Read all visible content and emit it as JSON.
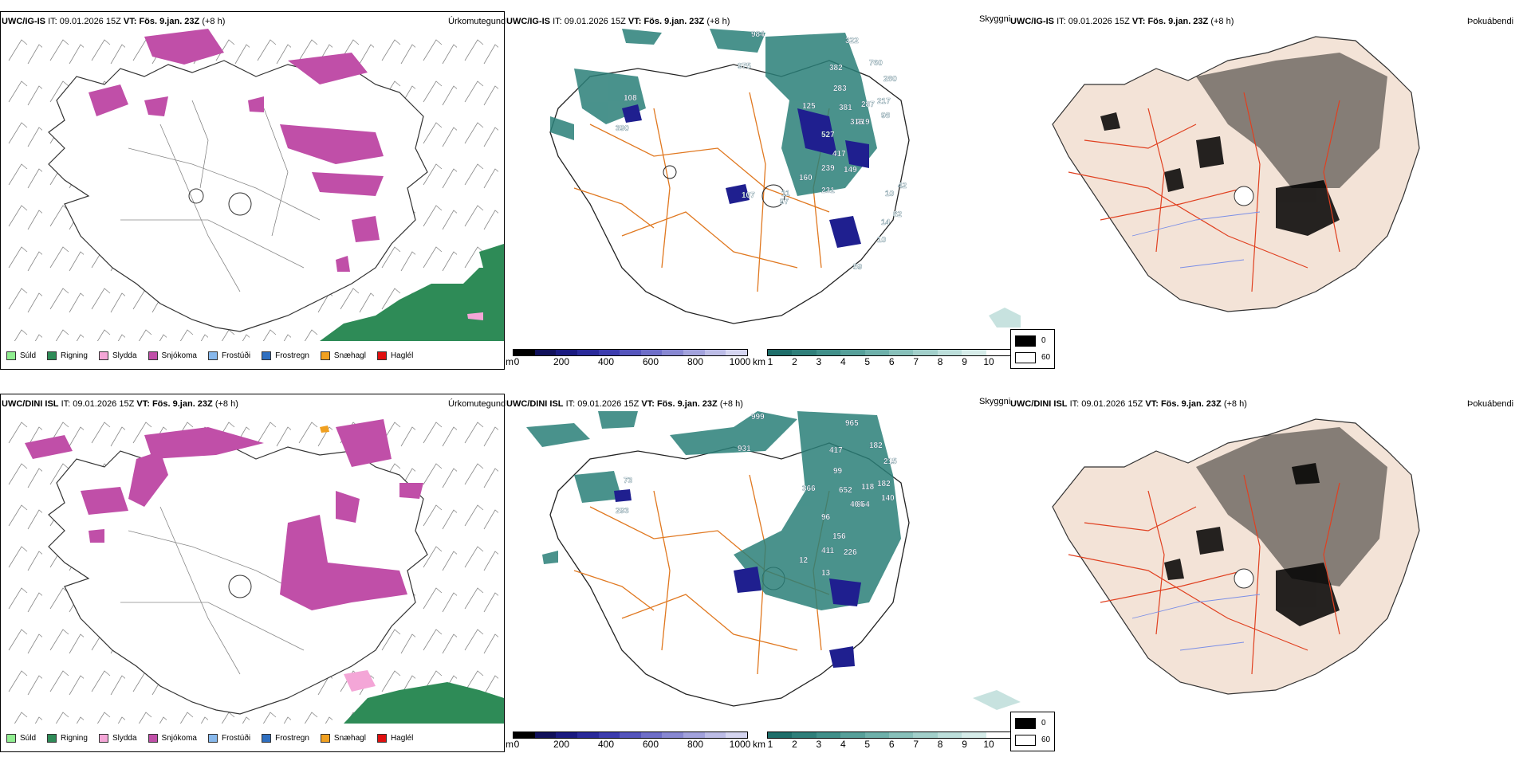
{
  "rows": [
    {
      "col1": {
        "model": "UWC/IG-IS",
        "it_label": "IT:",
        "it": "09.01.2026 15Z",
        "vt_label": "VT:",
        "vt": "Fös. 9.jan. 23Z",
        "lead": "(+8 h)",
        "product": "Úrkomutegund"
      },
      "col2": {
        "model": "UWC/IG-IS",
        "it_label": "IT:",
        "it": "09.01.2026 15Z",
        "vt_label": "VT:",
        "vt": "Fös. 9.jan. 23Z",
        "lead": "(+8 h)",
        "product": "Skyggni"
      },
      "col3": {
        "model": "UWC/IG-IS",
        "it_label": "IT:",
        "it": "09.01.2026 15Z",
        "vt_label": "VT:",
        "vt": "Fös. 9.jan. 23Z",
        "lead": "(+8 h)",
        "product": "Þokuábendi"
      },
      "ceiling_labels": [
        "975",
        "984",
        "322",
        "382",
        "760",
        "280",
        "108",
        "390",
        "283",
        "125",
        "381",
        "217",
        "219",
        "287",
        "316",
        "98",
        "527",
        "417",
        "149",
        "239",
        "160",
        "231",
        "11",
        "97",
        "107",
        "42",
        "10",
        "82",
        "14",
        "10",
        "59"
      ]
    },
    {
      "col1": {
        "model": "UWC/DINI ISL",
        "it_label": "IT:",
        "it": "09.01.2026 15Z",
        "vt_label": "VT:",
        "vt": "Fös. 9.jan. 23Z",
        "lead": "(+8 h)",
        "product": "Úrkomutegund"
      },
      "col2": {
        "model": "UWC/DINI ISL",
        "it_label": "IT:",
        "it": "09.01.2026 15Z",
        "vt_label": "VT:",
        "vt": "Fös. 9.jan. 23Z",
        "lead": "(+8 h)",
        "product": "Skyggni"
      },
      "col3": {
        "model": "UWC/DINI ISL",
        "it_label": "IT:",
        "it": "09.01.2026 15Z",
        "vt_label": "VT:",
        "vt": "Fös. 9.jan. 23Z",
        "lead": "(+8 h)",
        "product": "Þokuábendi"
      },
      "ceiling_labels": [
        "931",
        "999",
        "965",
        "417",
        "182",
        "215",
        "73",
        "293",
        "99",
        "366",
        "652",
        "182",
        "654",
        "118",
        "404",
        "140",
        "96",
        "156",
        "226",
        "411",
        "12",
        "13"
      ]
    }
  ],
  "precip_legend": [
    {
      "label": "Súld",
      "color": "#90ee90"
    },
    {
      "label": "Rigning",
      "color": "#2e8b57"
    },
    {
      "label": "Slydda",
      "color": "#f4a6d7"
    },
    {
      "label": "Snjókoma",
      "color": "#c04fa8"
    },
    {
      "label": "Frostúði",
      "color": "#87b8ec"
    },
    {
      "label": "Frostregn",
      "color": "#2f6fc0"
    },
    {
      "label": "Snæhagl",
      "color": "#f0a020"
    },
    {
      "label": "Haglél",
      "color": "#e01010"
    }
  ],
  "ceiling_scale": {
    "unit": "m",
    "ticks": [
      "0",
      "200",
      "400",
      "600",
      "800",
      "1000"
    ],
    "colors": [
      "#000000",
      "#10105a",
      "#1a1a80",
      "#2a2a9a",
      "#3c3cae",
      "#5555bc",
      "#6e6ec8",
      "#8888d2",
      "#a2a2dc",
      "#bcbce6",
      "#d5d5f0"
    ]
  },
  "visibility_scale": {
    "unit": "km",
    "ticks": [
      "1",
      "2",
      "3",
      "4",
      "5",
      "6",
      "7",
      "8",
      "9",
      "10"
    ],
    "colors": [
      "#1e6e6a",
      "#2f7f7a",
      "#41908a",
      "#57a09a",
      "#6eb0aa",
      "#88c0ba",
      "#a2cfca",
      "#bcdeda",
      "#d6ece9",
      "#ffffff"
    ]
  },
  "fog_key": [
    {
      "value": "0",
      "color": "#000000"
    },
    {
      "value": "60",
      "color": "#ffffff"
    }
  ]
}
